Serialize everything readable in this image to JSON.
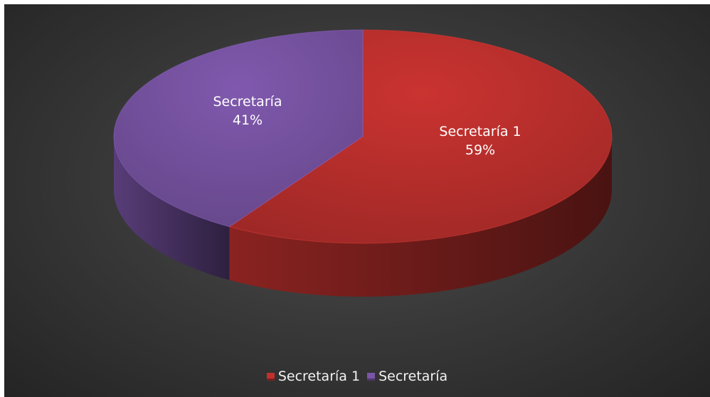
{
  "chart_data": {
    "type": "pie",
    "title": "",
    "slices": [
      {
        "label": "Secretaría 1",
        "percent": "59%",
        "value": 59,
        "color": "#c0312e"
      },
      {
        "label": "Secretaría",
        "percent": "41%",
        "value": 41,
        "color": "#7a55a6"
      }
    ],
    "legend": {
      "placement": "bottom",
      "items": [
        {
          "label": "Secretaría 1",
          "color": "#c0312e"
        },
        {
          "label": "Secretaría",
          "color": "#7a55a6"
        }
      ]
    },
    "style": "3d-pie"
  }
}
